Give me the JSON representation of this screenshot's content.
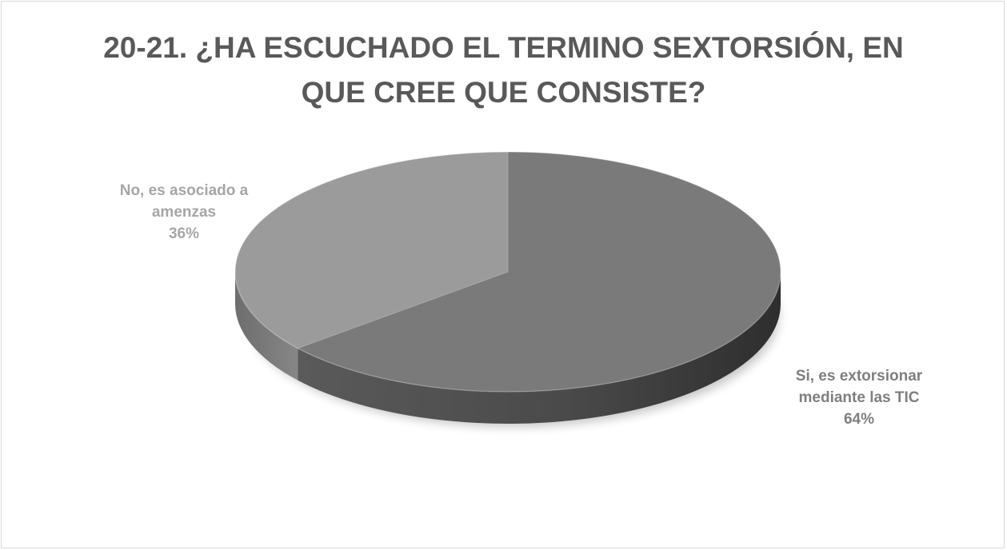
{
  "chart_data": {
    "type": "pie",
    "title_lines": [
      "20-21. ¿HA ESCUCHADO EL TERMINO SEXTORSIÓN, EN",
      "QUE CREE QUE CONSISTE?"
    ],
    "slices": [
      {
        "label_lines": [
          "Si, es extorsionar",
          "mediante las TIC"
        ],
        "value": 64,
        "value_text": "64%",
        "color": "#7a7a7a",
        "label_color": "#7f7f7f"
      },
      {
        "label_lines": [
          "No, es asociado a",
          "amenzas"
        ],
        "value": 36,
        "value_text": "36%",
        "color": "#9b9b9b",
        "label_color": "#a6a6a6"
      }
    ],
    "legend": "none",
    "style": "3d"
  }
}
